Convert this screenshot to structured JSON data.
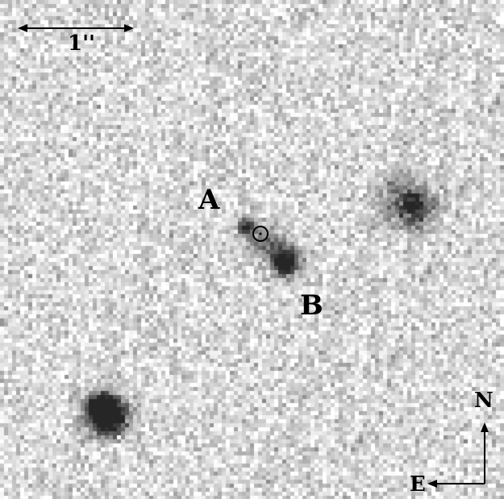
{
  "labels": {
    "scale": "1''",
    "component_a": "A",
    "component_b": "B",
    "north": "N",
    "east": "E"
  },
  "colors": {
    "background": "#ffffff",
    "ink": "#000000"
  },
  "icons": {
    "scale_bar": "double-arrow-icon",
    "compass": "compass-arrows-icon",
    "marker": "circle-marker-icon"
  }
}
